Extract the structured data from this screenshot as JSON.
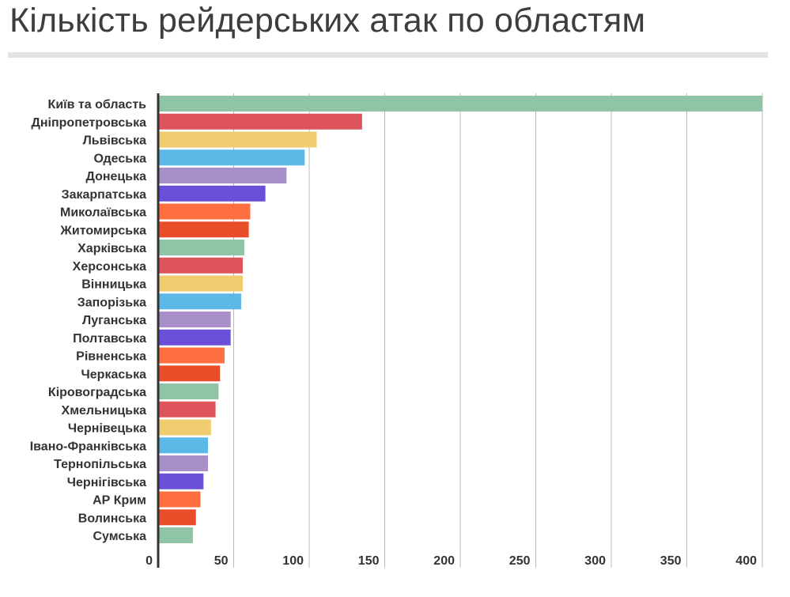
{
  "title": "Кількість рейдерських атак по областям",
  "chart_data": {
    "type": "bar",
    "orientation": "horizontal",
    "title": "Кількість рейдерських атак по областям",
    "xlabel": "",
    "ylabel": "",
    "xlim": [
      0,
      410
    ],
    "x_ticks": [
      0,
      50,
      100,
      150,
      200,
      250,
      300,
      350,
      400
    ],
    "grid": true,
    "categories": [
      "Київ та область",
      "Дніпропетровська",
      "Львівська",
      "Одеська",
      "Донецька",
      "Закарпатська",
      "Миколаївська",
      "Житомирська",
      "Харківська",
      "Херсонська",
      "Вінницька",
      "Запорізька",
      "Луганська",
      "Полтавська",
      "Рівненська",
      "Черкаська",
      "Кіровоградська",
      "Хмельницька",
      "Чернівецька",
      "Івано-Франківська",
      "Тернопільська",
      "Чернігівська",
      "АР Крим",
      "Волинська",
      "Сумська"
    ],
    "values": [
      400,
      135,
      105,
      97,
      85,
      71,
      61,
      60,
      57,
      56,
      56,
      55,
      48,
      48,
      44,
      41,
      40,
      38,
      35,
      33,
      33,
      30,
      28,
      25,
      23
    ],
    "colors": [
      "#8fc4a6",
      "#dd555b",
      "#f0cd6e",
      "#5cb8e6",
      "#a98fc8",
      "#6b4fdb",
      "#ff7040",
      "#e84e2a",
      "#8fc4a6",
      "#dd555b",
      "#f0cd6e",
      "#5cb8e6",
      "#a98fc8",
      "#6b4fdb",
      "#ff7040",
      "#e84e2a",
      "#8fc4a6",
      "#dd555b",
      "#f0cd6e",
      "#5cb8e6",
      "#a98fc8",
      "#6b4fdb",
      "#ff7040",
      "#e84e2a",
      "#8fc4a6"
    ]
  }
}
